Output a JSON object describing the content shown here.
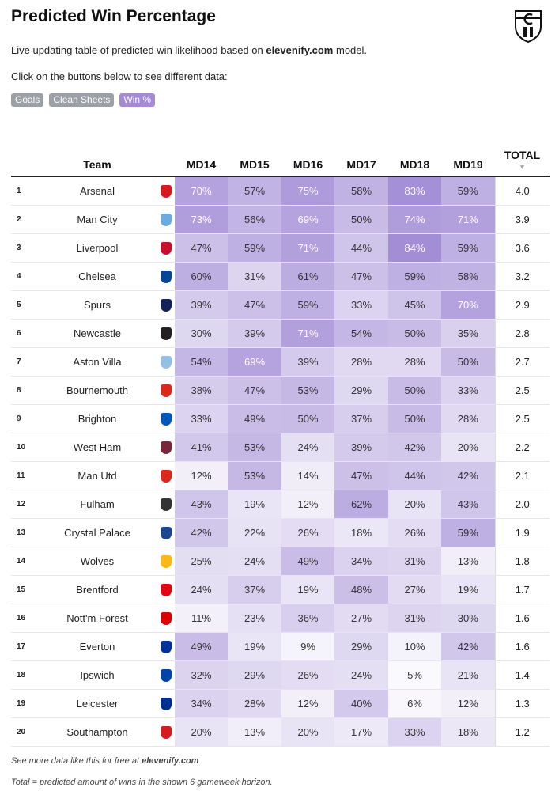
{
  "title": "Predicted Win Percentage",
  "description": {
    "prefix": "Live updating table of predicted win likelihood based on ",
    "link": "elevenify.com",
    "suffix": " model."
  },
  "hint": "Click on the buttons below to see different data:",
  "buttons": [
    {
      "label": "Goals",
      "active": false
    },
    {
      "label": "Clean Sheets",
      "active": false
    },
    {
      "label": "Win %",
      "active": true
    }
  ],
  "headers": {
    "team": "Team",
    "matchdays": [
      "MD14",
      "MD15",
      "MD16",
      "MD17",
      "MD18",
      "MD19"
    ],
    "total": "TOTAL",
    "sort_arrow": "▼"
  },
  "rows": [
    {
      "rank": "1",
      "team": "Arsenal",
      "crest": "#d71920",
      "values": [
        "70%",
        "57%",
        "75%",
        "58%",
        "83%",
        "59%"
      ],
      "total": "4.0"
    },
    {
      "rank": "2",
      "team": "Man City",
      "crest": "#6cabdd",
      "values": [
        "73%",
        "56%",
        "69%",
        "50%",
        "74%",
        "71%"
      ],
      "total": "3.9"
    },
    {
      "rank": "3",
      "team": "Liverpool",
      "crest": "#c8102e",
      "values": [
        "47%",
        "59%",
        "71%",
        "44%",
        "84%",
        "59%"
      ],
      "total": "3.6"
    },
    {
      "rank": "4",
      "team": "Chelsea",
      "crest": "#034694",
      "values": [
        "60%",
        "31%",
        "61%",
        "47%",
        "59%",
        "58%"
      ],
      "total": "3.2"
    },
    {
      "rank": "5",
      "team": "Spurs",
      "crest": "#132257",
      "values": [
        "39%",
        "47%",
        "59%",
        "33%",
        "45%",
        "70%"
      ],
      "total": "2.9"
    },
    {
      "rank": "6",
      "team": "Newcastle",
      "crest": "#241f20",
      "values": [
        "30%",
        "39%",
        "71%",
        "54%",
        "50%",
        "35%"
      ],
      "total": "2.8"
    },
    {
      "rank": "7",
      "team": "Aston Villa",
      "crest": "#95bfe5",
      "values": [
        "54%",
        "69%",
        "39%",
        "28%",
        "28%",
        "50%"
      ],
      "total": "2.7"
    },
    {
      "rank": "8",
      "team": "Bournemouth",
      "crest": "#da291c",
      "values": [
        "38%",
        "47%",
        "53%",
        "29%",
        "50%",
        "33%"
      ],
      "total": "2.5"
    },
    {
      "rank": "9",
      "team": "Brighton",
      "crest": "#0057b8",
      "values": [
        "33%",
        "49%",
        "50%",
        "37%",
        "50%",
        "28%"
      ],
      "total": "2.5"
    },
    {
      "rank": "10",
      "team": "West Ham",
      "crest": "#7a263a",
      "values": [
        "41%",
        "53%",
        "24%",
        "39%",
        "42%",
        "20%"
      ],
      "total": "2.2"
    },
    {
      "rank": "11",
      "team": "Man Utd",
      "crest": "#da291c",
      "values": [
        "12%",
        "53%",
        "14%",
        "47%",
        "44%",
        "42%"
      ],
      "total": "2.1"
    },
    {
      "rank": "12",
      "team": "Fulham",
      "crest": "#333333",
      "values": [
        "43%",
        "19%",
        "12%",
        "62%",
        "20%",
        "43%"
      ],
      "total": "2.0"
    },
    {
      "rank": "13",
      "team": "Crystal Palace",
      "crest": "#1b458f",
      "values": [
        "42%",
        "22%",
        "26%",
        "18%",
        "26%",
        "59%"
      ],
      "total": "1.9"
    },
    {
      "rank": "14",
      "team": "Wolves",
      "crest": "#fdb913",
      "values": [
        "25%",
        "24%",
        "49%",
        "34%",
        "31%",
        "13%"
      ],
      "total": "1.8"
    },
    {
      "rank": "15",
      "team": "Brentford",
      "crest": "#e30613",
      "values": [
        "24%",
        "37%",
        "19%",
        "48%",
        "27%",
        "19%"
      ],
      "total": "1.7"
    },
    {
      "rank": "16",
      "team": "Nott'm Forest",
      "crest": "#dd0000",
      "values": [
        "11%",
        "23%",
        "36%",
        "27%",
        "31%",
        "30%"
      ],
      "total": "1.6"
    },
    {
      "rank": "17",
      "team": "Everton",
      "crest": "#003399",
      "values": [
        "49%",
        "19%",
        "9%",
        "29%",
        "10%",
        "42%"
      ],
      "total": "1.6"
    },
    {
      "rank": "18",
      "team": "Ipswich",
      "crest": "#0044a9",
      "values": [
        "32%",
        "29%",
        "26%",
        "24%",
        "5%",
        "21%"
      ],
      "total": "1.4"
    },
    {
      "rank": "19",
      "team": "Leicester",
      "crest": "#003090",
      "values": [
        "34%",
        "28%",
        "12%",
        "40%",
        "6%",
        "12%"
      ],
      "total": "1.3"
    },
    {
      "rank": "20",
      "team": "Southampton",
      "crest": "#d71920",
      "values": [
        "20%",
        "13%",
        "20%",
        "17%",
        "33%",
        "18%"
      ],
      "total": "1.2"
    }
  ],
  "footer": {
    "line1_prefix": "See more data like this for free at ",
    "line1_link": "elevenify.com",
    "line2": "Total = predicted amount of wins in the shown 6 gameweek horizon."
  },
  "colors": {
    "heat_base": "#7a5cc4",
    "button_inactive": "#9aa0a6",
    "button_active": "#a58ad6"
  }
}
